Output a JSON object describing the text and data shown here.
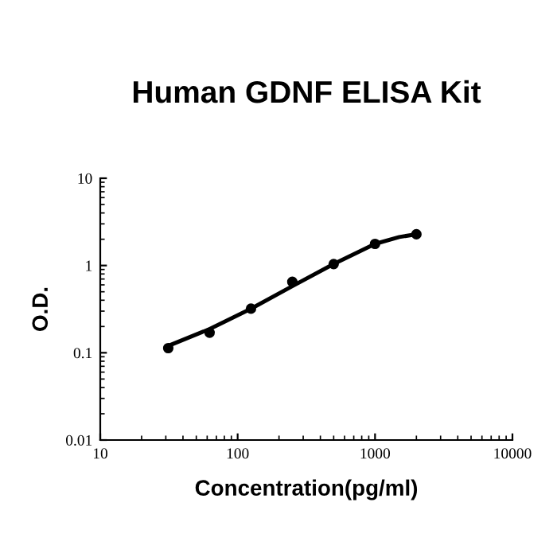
{
  "chart_data": {
    "type": "scatter",
    "title": "Human GDNF ELISA Kit",
    "xlabel": "Concentration(pg/ml)",
    "ylabel": "O.D.",
    "log": "xy",
    "xlim": [
      10,
      10000
    ],
    "ylim": [
      0.01,
      10
    ],
    "xticks": [
      10,
      100,
      1000,
      10000
    ],
    "yticks": [
      0.01,
      0.1,
      1,
      10
    ],
    "grid": false,
    "legend": false,
    "series": [
      {
        "color": "#000000",
        "marker": "circle",
        "x": [
          31.25,
          62.5,
          125,
          250,
          500,
          1000,
          2000
        ],
        "values": [
          0.113,
          0.17,
          0.32,
          0.65,
          1.04,
          1.77,
          2.28
        ]
      },
      {
        "type": "line",
        "color": "#000000",
        "marker": "none",
        "line_style": "solid",
        "x": [
          31.25,
          62.5,
          125,
          250,
          500,
          1000,
          1500,
          2000
        ],
        "values": [
          0.12,
          0.187,
          0.32,
          0.58,
          1.04,
          1.77,
          2.12,
          2.28
        ]
      }
    ]
  }
}
